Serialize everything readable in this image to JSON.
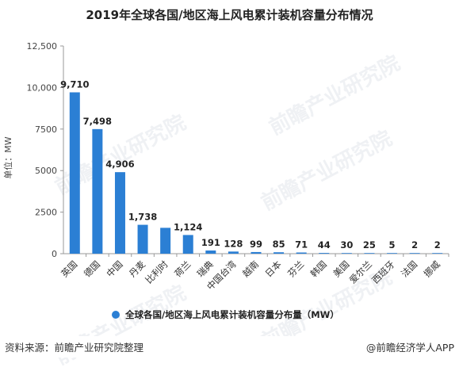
{
  "chart_data": {
    "type": "bar",
    "title": "2019年全球各国/地区海上风电累计装机容量分布情况",
    "ylabel": "单位：MW",
    "ylim": [
      0,
      12500
    ],
    "yticks": [
      0,
      2500,
      5000,
      7500,
      10000,
      12500
    ],
    "ytick_labels": [
      "0",
      "2500",
      "5000",
      "7500",
      "10,000",
      "12,500"
    ],
    "grid": false,
    "legend_position": "bottom",
    "categories": [
      "英国",
      "德国",
      "中国",
      "丹麦",
      "比利时",
      "荷兰",
      "瑞典",
      "中国台湾",
      "越南",
      "日本",
      "芬兰",
      "韩国",
      "美国",
      "爱尔兰",
      "西班牙",
      "法国",
      "挪威"
    ],
    "series": [
      {
        "name": "全球各国/地区海上风电累计装机容量分布量（MW）",
        "values": [
          9710,
          7498,
          4906,
          1738,
          1556,
          1124,
          191,
          128,
          99,
          85,
          71,
          44,
          30,
          25,
          5,
          2,
          2
        ],
        "labels": [
          "9,710",
          "7,498",
          "4,906",
          "1,738",
          "",
          "1,124",
          "191",
          "128",
          "99",
          "85",
          "71",
          "44",
          "30",
          "25",
          "5",
          "2",
          "2"
        ]
      }
    ],
    "colors": {
      "bar": "#2b7fd4",
      "axis": "#999999"
    }
  },
  "footer": {
    "source": "资料来源：前瞻产业研究院整理",
    "brand": "@前瞻经济学人APP"
  },
  "watermark_text": "前瞻产业研究院"
}
